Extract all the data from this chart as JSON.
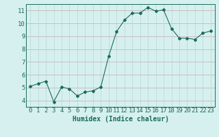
{
  "x": [
    0,
    1,
    2,
    3,
    4,
    5,
    6,
    7,
    8,
    9,
    10,
    11,
    12,
    13,
    14,
    15,
    16,
    17,
    18,
    19,
    20,
    21,
    22,
    23
  ],
  "y": [
    5.1,
    5.3,
    5.5,
    3.9,
    5.05,
    4.9,
    4.35,
    4.65,
    4.75,
    5.05,
    7.45,
    9.35,
    10.25,
    10.8,
    10.8,
    11.25,
    10.95,
    11.05,
    9.6,
    8.85,
    8.85,
    8.75,
    9.25,
    9.4
  ],
  "line_color": "#1a6b5a",
  "marker": "D",
  "markersize": 2.0,
  "bg_color": "#d6f0ef",
  "grid_color_h": "#c8a8a8",
  "grid_color_v": "#b8d4d4",
  "xlabel": "Humidex (Indice chaleur)",
  "xlim": [
    -0.5,
    23.5
  ],
  "ylim": [
    3.5,
    11.5
  ],
  "yticks": [
    4,
    5,
    6,
    7,
    8,
    9,
    10,
    11
  ],
  "xticks": [
    0,
    1,
    2,
    3,
    4,
    5,
    6,
    7,
    8,
    9,
    10,
    11,
    12,
    13,
    14,
    15,
    16,
    17,
    18,
    19,
    20,
    21,
    22,
    23
  ],
  "tick_color": "#1a6b5a",
  "label_color": "#1a6b5a",
  "font_size_xlabel": 7,
  "font_size_ticks": 6.5
}
